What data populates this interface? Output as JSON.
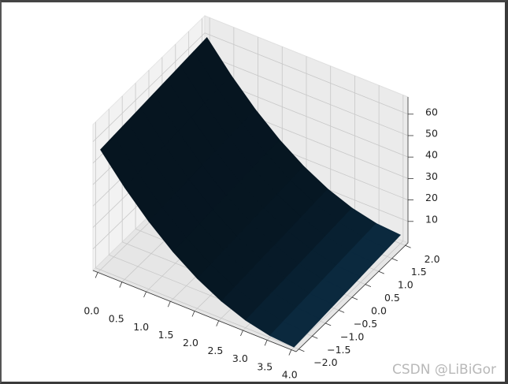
{
  "chart_data": {
    "type": "surface",
    "x": [
      0,
      0.5,
      1,
      1.5,
      2,
      2.5,
      3,
      3.5,
      4
    ],
    "y": [
      -2,
      -1.5,
      -1,
      -0.5,
      0,
      0.5,
      1,
      1.5,
      2
    ],
    "z": [
      [
        56,
        56.5,
        57,
        57.5,
        58,
        58.5,
        59,
        59.5,
        60
      ],
      [
        42.875,
        43.375,
        43.875,
        44.375,
        44.875,
        45.375,
        45.875,
        46.375,
        46.875
      ],
      [
        31.5,
        32,
        32.5,
        33,
        33.5,
        34,
        34.5,
        35,
        35.5
      ],
      [
        21.875,
        22.375,
        22.875,
        23.375,
        23.875,
        24.375,
        24.875,
        25.375,
        25.875
      ],
      [
        14,
        14.5,
        15,
        15.5,
        16,
        16.5,
        17,
        17.5,
        18
      ],
      [
        7.875,
        8.375,
        8.875,
        9.375,
        9.875,
        10.375,
        10.875,
        11.375,
        11.875
      ],
      [
        3.5,
        4,
        4.5,
        5,
        5.5,
        6,
        6.5,
        7,
        7.5
      ],
      [
        0.875,
        1.375,
        1.875,
        2.375,
        2.875,
        3.375,
        3.875,
        4.375,
        4.875
      ],
      [
        0,
        0.5,
        1,
        1.5,
        2,
        2.5,
        3,
        3.5,
        4
      ]
    ],
    "color": "#1f77b4",
    "xlim": [
      -0.1,
      4.1
    ],
    "ylim": [
      -2.1,
      2.1
    ],
    "zlim": [
      0,
      68
    ],
    "xticks": [
      {
        "value": 0,
        "label": "0.0"
      },
      {
        "value": 0.5,
        "label": "0.5"
      },
      {
        "value": 1,
        "label": "1.0"
      },
      {
        "value": 1.5,
        "label": "1.5"
      },
      {
        "value": 2,
        "label": "2.0"
      },
      {
        "value": 2.5,
        "label": "2.5"
      },
      {
        "value": 3,
        "label": "3.0"
      },
      {
        "value": 3.5,
        "label": "3.5"
      },
      {
        "value": 4,
        "label": "4.0"
      }
    ],
    "yticks": [
      {
        "value": -2,
        "label": "−2.0"
      },
      {
        "value": -1.5,
        "label": "−1.5"
      },
      {
        "value": -1,
        "label": "−1.0"
      },
      {
        "value": -0.5,
        "label": "−0.5"
      },
      {
        "value": 0,
        "label": "0.0"
      },
      {
        "value": 0.5,
        "label": "0.5"
      },
      {
        "value": 1,
        "label": "1.0"
      },
      {
        "value": 1.5,
        "label": "1.5"
      },
      {
        "value": 2,
        "label": "2.0"
      }
    ],
    "zticks": [
      10,
      20,
      30,
      40,
      50,
      60
    ],
    "grid": true
  },
  "watermark": "CSDN @LiBiGor"
}
